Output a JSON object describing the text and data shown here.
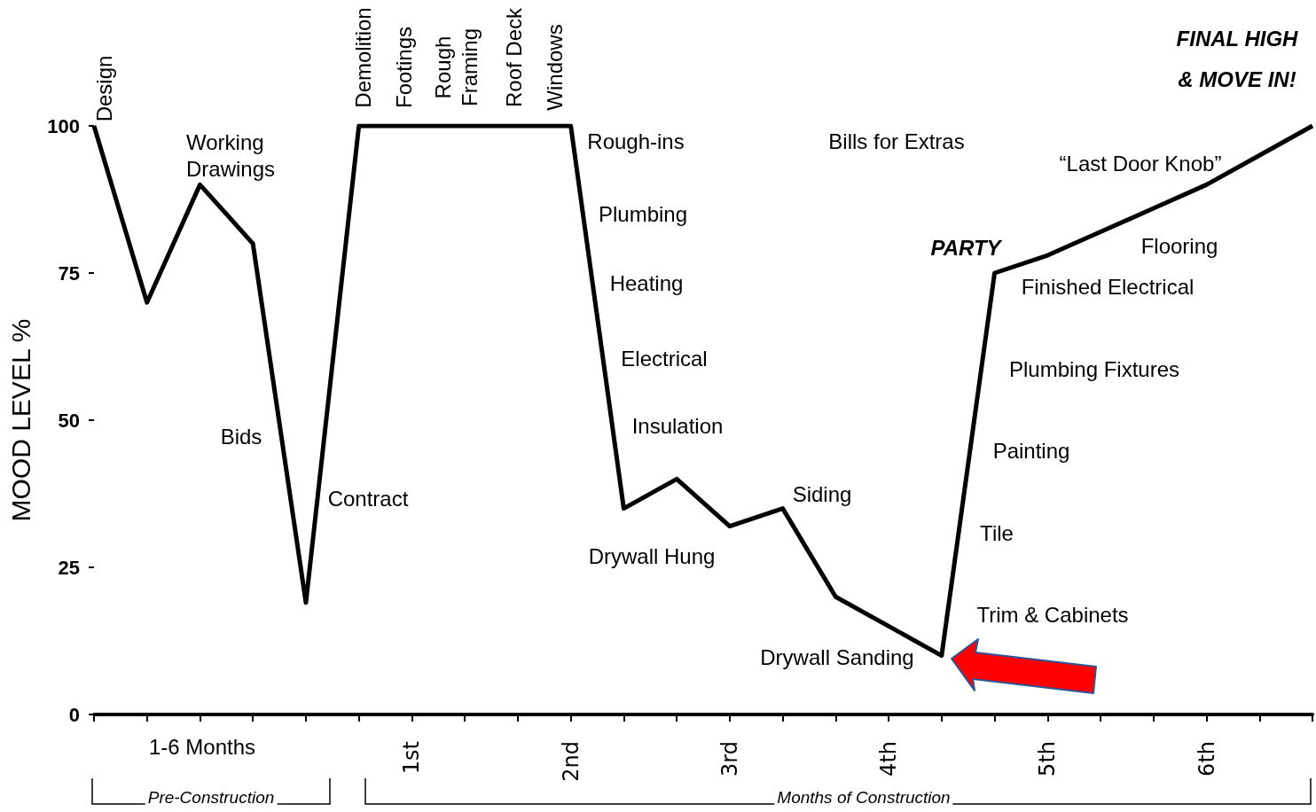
{
  "chart_data": {
    "type": "line",
    "ylabel": "MOOD LEVEL %",
    "categories": [
      null,
      null,
      null,
      null,
      null,
      null,
      "1st",
      null,
      null,
      "2nd",
      null,
      null,
      "3rd",
      null,
      null,
      "4th",
      null,
      null,
      "5th",
      null,
      null,
      "6th",
      null,
      null
    ],
    "values": [
      100,
      70,
      90,
      80,
      19,
      100,
      100,
      100,
      100,
      100,
      35,
      40,
      32,
      35,
      20,
      15,
      10,
      75,
      78,
      82,
      86,
      90,
      95,
      100
    ],
    "color": "#000000",
    "ylim": [
      0,
      100
    ],
    "yticks": [
      0,
      25,
      50,
      75,
      100
    ],
    "annotations": [
      "Design",
      "Working Drawings",
      "Bids",
      "Contract",
      "Demolition",
      "Footings",
      "Rough Framing",
      "Roof Deck",
      "Windows",
      "Rough-ins",
      "Plumbing",
      "Heating",
      "Electrical",
      "Insulation",
      "Drywall Hung",
      "Siding",
      "Drywall Sanding",
      "Bills for Extras",
      "“Last Door Knob”",
      "PARTY",
      "Flooring",
      "Finished Electrical",
      "Plumbing Fixtures",
      "Painting",
      "Tile",
      "Trim & Cabinets",
      "FINAL HIGH & MOVE IN!",
      "1-6 Months",
      "Pre-Construction",
      "Months of Construction"
    ]
  }
}
